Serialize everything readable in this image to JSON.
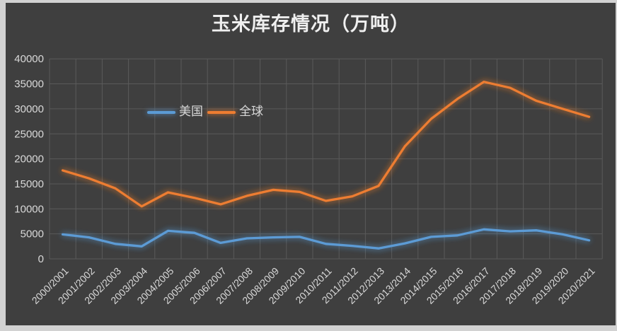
{
  "page": {
    "title": "玉米库存情况（万吨）"
  },
  "colors": {
    "page_border": "#d2d2d2",
    "chart_background": "#3f3f3f",
    "gridline": "#5a5a5a",
    "tick_text": "#d9d9d9",
    "title_text": "#efefef",
    "us_series": "#5b9bd5",
    "global_series": "#ed7d31"
  },
  "chart_data": {
    "type": "line",
    "title": "玉米库存情况（万吨）",
    "xlabel": "",
    "ylabel": "",
    "grid": true,
    "legend_position": "inside-top-center",
    "ylim": [
      0,
      40000
    ],
    "ytick_step": 5000,
    "yticks": [
      "0",
      "5000",
      "10000",
      "15000",
      "20000",
      "25000",
      "30000",
      "35000",
      "40000"
    ],
    "categories": [
      "2000/2001",
      "2001/2002",
      "2002/2003",
      "2003/2004",
      "2004/2005",
      "2005/2006",
      "2006/2007",
      "2007/2008",
      "2008/2009",
      "2009/2010",
      "2010/2011",
      "2011/2012",
      "2012/2013",
      "2013/2014",
      "2014/2015",
      "2015/2016",
      "2016/2017",
      "2017/2018",
      "2018/2019",
      "2019/2020",
      "2020/2021"
    ],
    "series": [
      {
        "name": "美国",
        "color": "#5b9bd5",
        "values": [
          4900,
          4300,
          3000,
          2500,
          5600,
          5200,
          3200,
          4100,
          4300,
          4400,
          3000,
          2600,
          2100,
          3100,
          4400,
          4700,
          5900,
          5500,
          5700,
          4900,
          3700
        ]
      },
      {
        "name": "全球",
        "color": "#ed7d31",
        "values": [
          17700,
          16100,
          14100,
          10500,
          13300,
          12200,
          10900,
          12600,
          13800,
          13400,
          11600,
          12500,
          14600,
          22500,
          28000,
          32000,
          35400,
          34200,
          31600,
          30000,
          28400
        ]
      }
    ]
  }
}
